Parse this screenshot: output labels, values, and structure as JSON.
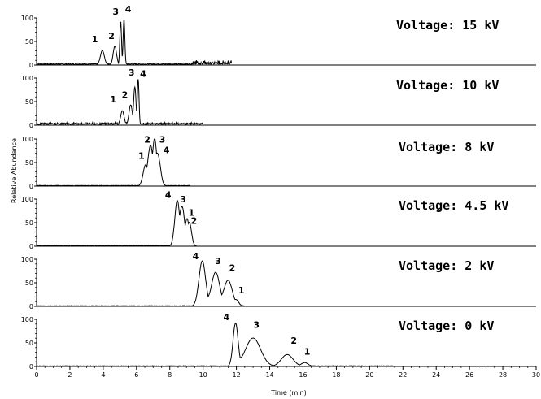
{
  "chart_data": {
    "type": "line",
    "xlabel": "Time (min)",
    "ylabel": "Relative Abundance",
    "xlim": [
      0,
      30
    ],
    "x_ticks": [
      "0",
      "2",
      "4",
      "6",
      "8",
      "10",
      "12",
      "14",
      "16",
      "18",
      "20",
      "22",
      "24",
      "26",
      "28",
      "30"
    ],
    "ylim": [
      0,
      100
    ],
    "y_ticks": [
      "0",
      "50",
      "100"
    ],
    "panels": [
      {
        "label": "Voltage: 15 kV",
        "x_end": 11.7,
        "baseline": 2,
        "noise": [
          [
            9.3,
            11.7,
            6
          ]
        ],
        "peaks": [
          {
            "id": "1",
            "x": 3.95,
            "height": 30,
            "width": 0.12
          },
          {
            "id": "2",
            "x": 4.7,
            "height": 40,
            "width": 0.1
          },
          {
            "id": "3",
            "x": 5.05,
            "height": 92,
            "width": 0.05
          },
          {
            "id": "4",
            "x": 5.25,
            "height": 96,
            "width": 0.05
          }
        ],
        "peak_labels": [
          {
            "id": "1",
            "x": 3.5,
            "y": 48
          },
          {
            "id": "2",
            "x": 4.5,
            "y": 55
          },
          {
            "id": "3",
            "x": 4.75,
            "y": 107
          },
          {
            "id": "4",
            "x": 5.5,
            "y": 112
          }
        ]
      },
      {
        "label": "Voltage: 10 kV",
        "x_end": 10.0,
        "baseline": 2,
        "noise": [
          [
            0.2,
            10.0,
            3
          ]
        ],
        "peaks": [
          {
            "id": "1",
            "x": 5.15,
            "height": 30,
            "width": 0.1
          },
          {
            "id": "2",
            "x": 5.65,
            "height": 42,
            "width": 0.1
          },
          {
            "id": "3",
            "x": 5.9,
            "height": 80,
            "width": 0.07
          },
          {
            "id": "4",
            "x": 6.1,
            "height": 97,
            "width": 0.05
          }
        ],
        "peak_labels": [
          {
            "id": "1",
            "x": 4.6,
            "y": 48
          },
          {
            "id": "2",
            "x": 5.3,
            "y": 58
          },
          {
            "id": "3",
            "x": 5.7,
            "y": 105
          },
          {
            "id": "4",
            "x": 6.4,
            "y": 103
          }
        ]
      },
      {
        "label": "Voltage: 8 kV",
        "x_end": 9.2,
        "baseline": 1,
        "noise": [],
        "peaks": [
          {
            "id": "1",
            "x": 6.55,
            "height": 45,
            "width": 0.15
          },
          {
            "id": "2",
            "x": 6.85,
            "height": 85,
            "width": 0.15
          },
          {
            "id": "3",
            "x": 7.1,
            "height": 95,
            "width": 0.12
          },
          {
            "id": "4",
            "x": 7.3,
            "height": 60,
            "width": 0.15
          }
        ],
        "peak_labels": [
          {
            "id": "1",
            "x": 6.3,
            "y": 58
          },
          {
            "id": "2",
            "x": 6.65,
            "y": 92
          },
          {
            "id": "3",
            "x": 7.55,
            "y": 92
          },
          {
            "id": "4",
            "x": 7.8,
            "y": 70
          }
        ]
      },
      {
        "label": "Voltage: 4.5 kV",
        "x_end": 9.6,
        "baseline": 1,
        "noise": [],
        "peaks": [
          {
            "id": "4",
            "x": 8.45,
            "height": 97,
            "width": 0.15
          },
          {
            "id": "3",
            "x": 8.75,
            "height": 80,
            "width": 0.15
          },
          {
            "id": "1",
            "x": 9.05,
            "height": 55,
            "width": 0.12
          },
          {
            "id": "2",
            "x": 9.2,
            "height": 42,
            "width": 0.12
          }
        ],
        "peak_labels": [
          {
            "id": "4",
            "x": 7.9,
            "y": 103
          },
          {
            "id": "3",
            "x": 8.8,
            "y": 93
          },
          {
            "id": "1",
            "x": 9.3,
            "y": 65
          },
          {
            "id": "2",
            "x": 9.45,
            "y": 47
          }
        ]
      },
      {
        "label": "Voltage: 2 kV",
        "x_end": 12.5,
        "baseline": 1,
        "noise": [],
        "peaks": [
          {
            "id": "4",
            "x": 9.95,
            "height": 96,
            "width": 0.2
          },
          {
            "id": "3",
            "x": 10.75,
            "height": 72,
            "width": 0.25
          },
          {
            "id": "2",
            "x": 11.5,
            "height": 55,
            "width": 0.25
          },
          {
            "id": "1",
            "x": 12.0,
            "height": 12,
            "width": 0.15
          }
        ],
        "peak_labels": [
          {
            "id": "4",
            "x": 9.55,
            "y": 100
          },
          {
            "id": "3",
            "x": 10.9,
            "y": 90
          },
          {
            "id": "2",
            "x": 11.75,
            "y": 75
          },
          {
            "id": "1",
            "x": 12.3,
            "y": 28
          }
        ]
      },
      {
        "label": "Voltage: 0 kV",
        "x_end": 21.4,
        "baseline": 1,
        "noise": [],
        "peaks": [
          {
            "id": "4",
            "x": 11.95,
            "height": 92,
            "width": 0.15
          },
          {
            "id": "3",
            "x": 13.0,
            "height": 60,
            "width": 0.45
          },
          {
            "id": "2",
            "x": 15.05,
            "height": 25,
            "width": 0.35
          },
          {
            "id": "1",
            "x": 16.1,
            "height": 8,
            "width": 0.2
          }
        ],
        "peak_labels": [
          {
            "id": "4",
            "x": 11.4,
            "y": 98
          },
          {
            "id": "3",
            "x": 13.2,
            "y": 82
          },
          {
            "id": "2",
            "x": 15.45,
            "y": 48
          },
          {
            "id": "1",
            "x": 16.25,
            "y": 25
          }
        ]
      }
    ]
  }
}
